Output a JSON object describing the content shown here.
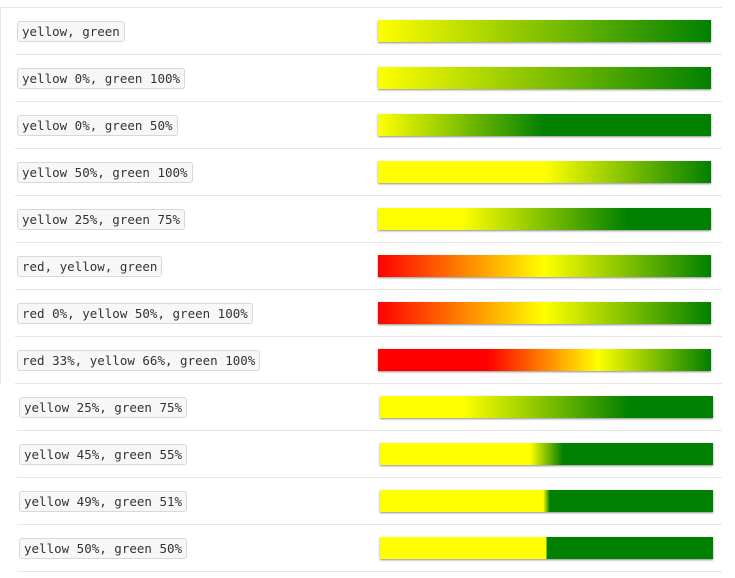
{
  "rows": [
    {
      "label": "yellow, green",
      "gradient": "linear-gradient(to right, yellow, green)"
    },
    {
      "label": "yellow 0%, green 100%",
      "gradient": "linear-gradient(to right, yellow 0%, green 100%)"
    },
    {
      "label": "yellow 0%, green 50%",
      "gradient": "linear-gradient(to right, yellow 0%, green 50%)"
    },
    {
      "label": "yellow 50%, green 100%",
      "gradient": "linear-gradient(to right, yellow 50%, green 100%)"
    },
    {
      "label": "yellow 25%, green 75%",
      "gradient": "linear-gradient(to right, yellow 25%, green 75%)"
    },
    {
      "label": "red, yellow, green",
      "gradient": "linear-gradient(to right, red, yellow, green)"
    },
    {
      "label": "red 0%, yellow 50%, green 100%",
      "gradient": "linear-gradient(to right, red 0%, yellow 50%, green 100%)"
    },
    {
      "label": "red 33%, yellow 66%, green 100%",
      "gradient": "linear-gradient(to right, red 33%, yellow 66%, green 100%)"
    },
    {
      "label": "yellow 25%, green 75%",
      "gradient": "linear-gradient(to right, yellow 25%, green 75%)"
    },
    {
      "label": "yellow 45%, green 55%",
      "gradient": "linear-gradient(to right, yellow 45%, green 55%)"
    },
    {
      "label": "yellow 49%, green 51%",
      "gradient": "linear-gradient(to right, yellow 49%, green 51%)"
    },
    {
      "label": "yellow 50%, green 50%",
      "gradient": "linear-gradient(to right, yellow 50%, green 50%)"
    }
  ]
}
